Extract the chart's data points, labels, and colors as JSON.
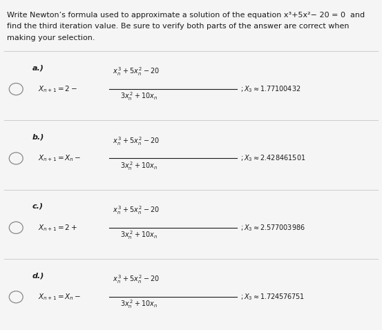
{
  "bg_color": "#f5f5f5",
  "text_color": "#1a1a1a",
  "title_line1": "Write Newton’s formula used to approximate a solution of the equation x³+5x²− 20 = 0  and",
  "title_line2": "find the third iteration value. Be sure to verify both parts of the answer are correct when",
  "title_line3": "making your selection.",
  "options": [
    {
      "label": "a.)",
      "lhs": "$X_{n+1}=2-$",
      "frac_num": "$x_n^{\\,3}+5x_n^{\\,2}-20$",
      "frac_den": "$3x_n^{\\,2}+10x_n$",
      "result": "$; X_3 \\approx 1.77100432$"
    },
    {
      "label": "b.)",
      "lhs": "$X_{n+1}=X_n-$",
      "frac_num": "$x_n^{\\,3}+5x_n^{\\,2}-20$",
      "frac_den": "$3x_n^{\\,2}+10x_n$",
      "result": "$; X_3 \\approx 2.428461501$"
    },
    {
      "label": "c.)",
      "lhs": "$X_{n+1}=2+$",
      "frac_num": "$x_n^{\\,3}+5x_n^{\\,2}-20$",
      "frac_den": "$3x_n^{\\,2}+10x_n$",
      "result": "$; X_3 \\approx 2.577003986$"
    },
    {
      "label": "d.)",
      "lhs": "$X_{n+1}=X_n-$",
      "frac_num": "$x_n^{\\,3}+5x_n^{\\,2}-20$",
      "frac_den": "$3x_n^{\\,2}+10x_n$",
      "result": "$; X_3 \\approx 1.724576751$"
    }
  ],
  "sep_color": "#cccccc",
  "circle_color": "#888888",
  "title_fontsize": 8.0,
  "label_fontsize": 8.0,
  "math_fontsize": 7.5,
  "figsize": [
    5.53,
    4.78
  ],
  "dpi": 100
}
